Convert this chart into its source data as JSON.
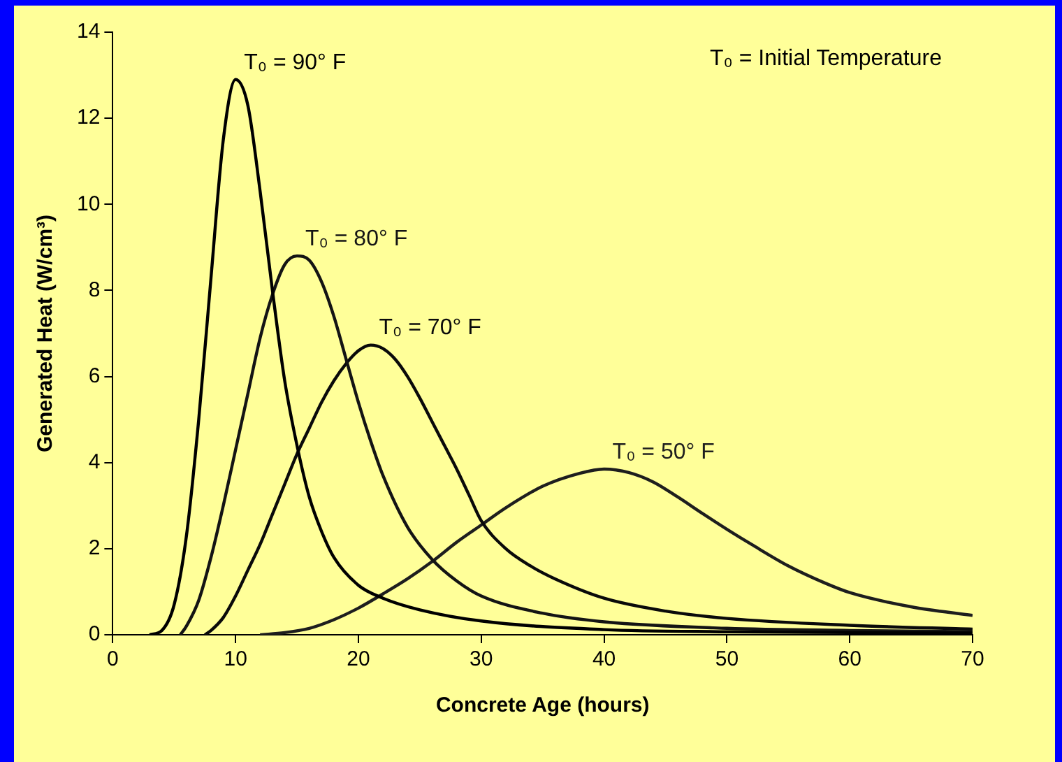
{
  "chart_data": {
    "type": "line",
    "xlabel": "Concrete Age (hours)",
    "ylabel": "Generated Heat (W/cm³)",
    "xlim": [
      0,
      70
    ],
    "xticks": [
      0,
      10,
      20,
      30,
      40,
      50,
      60,
      70
    ],
    "ylim": [
      0,
      14
    ],
    "yticks": [
      0,
      2,
      4,
      6,
      8,
      10,
      12,
      14
    ],
    "grid": false,
    "legend": false,
    "marker": "none",
    "line_style": "solid",
    "series": [
      {
        "name": "T₀ = 90° F",
        "color": "#000000",
        "x": [
          3,
          4,
          5,
          6,
          7,
          8,
          9,
          10,
          11,
          12,
          13,
          14,
          15,
          16,
          17,
          18,
          20,
          22,
          25,
          30,
          40,
          50,
          60,
          70
        ],
        "values": [
          0,
          0.1,
          0.7,
          2.3,
          5,
          8.3,
          11.5,
          12.9,
          12.3,
          10.3,
          8,
          5.9,
          4.4,
          3.2,
          2.4,
          1.8,
          1.15,
          0.85,
          0.58,
          0.32,
          0.12,
          0.07,
          0.05,
          0.04
        ]
      },
      {
        "name": "T₀ = 80° F",
        "color": "#141414",
        "x": [
          5.5,
          6,
          7,
          8,
          9,
          10,
          11,
          12,
          13,
          14,
          15,
          16,
          17,
          18,
          19,
          20,
          21,
          22,
          24,
          26,
          28,
          30,
          35,
          40,
          50,
          60,
          70
        ],
        "values": [
          0,
          0.2,
          0.8,
          1.8,
          3,
          4.3,
          5.6,
          6.9,
          7.9,
          8.6,
          8.8,
          8.7,
          8.2,
          7.4,
          6.4,
          5.4,
          4.5,
          3.7,
          2.5,
          1.75,
          1.25,
          0.9,
          0.5,
          0.3,
          0.15,
          0.1,
          0.07
        ]
      },
      {
        "name": "T₀ = 70° F",
        "color": "#0a0a0a",
        "x": [
          7.5,
          8,
          9,
          10,
          11,
          12,
          13,
          14,
          15,
          16,
          17,
          18,
          19,
          20,
          21,
          22,
          23,
          24,
          25,
          26,
          27,
          28,
          29,
          30,
          32,
          34,
          36,
          40,
          45,
          50,
          60,
          70
        ],
        "values": [
          0,
          0.1,
          0.4,
          0.9,
          1.5,
          2.1,
          2.8,
          3.5,
          4.2,
          4.8,
          5.4,
          5.9,
          6.3,
          6.6,
          6.73,
          6.65,
          6.4,
          6,
          5.5,
          4.95,
          4.4,
          3.85,
          3.25,
          2.65,
          2,
          1.6,
          1.3,
          0.85,
          0.55,
          0.38,
          0.22,
          0.13
        ]
      },
      {
        "name": "T₀ = 50° F",
        "color": "#1e1e1e",
        "x": [
          12,
          14,
          16,
          18,
          20,
          22,
          24,
          26,
          28,
          30,
          32,
          35,
          38,
          40,
          42,
          44,
          46,
          48,
          50,
          52,
          55,
          58,
          60,
          65,
          70
        ],
        "values": [
          0,
          0.05,
          0.15,
          0.35,
          0.62,
          0.95,
          1.3,
          1.7,
          2.15,
          2.55,
          2.95,
          3.45,
          3.75,
          3.85,
          3.77,
          3.55,
          3.2,
          2.82,
          2.45,
          2.1,
          1.6,
          1.2,
          0.98,
          0.65,
          0.45
        ]
      }
    ],
    "annotations": [
      "T₀ = Initial Temperature"
    ]
  }
}
